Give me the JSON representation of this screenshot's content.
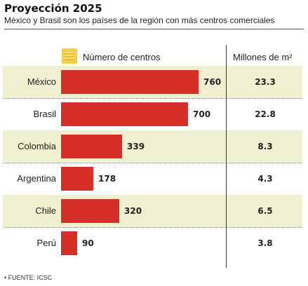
{
  "header": {
    "title": "Proyección 2025",
    "subtitle": "México y Brasil son los países de la región con más centros comerciales"
  },
  "legend": {
    "bar_label": "Número de centros",
    "column2_label": "Millones de m²",
    "swatch_color": "#f2d04a"
  },
  "source": "• FUENTE: ICSC",
  "colors": {
    "bar": "#d52f28",
    "row_shade": "#eef0d0"
  },
  "chart_data": {
    "type": "bar",
    "orientation": "horizontal",
    "title": "Proyección 2025",
    "subtitle": "México y Brasil son los países de la región con más centros comerciales",
    "categories": [
      "México",
      "Brasil",
      "Colombia",
      "Argentina",
      "Chile",
      "Perú"
    ],
    "series": [
      {
        "name": "Número de centros",
        "values": [
          760,
          700,
          339,
          178,
          320,
          90
        ]
      },
      {
        "name": "Millones de m²",
        "values": [
          "23.3",
          "22.8",
          "8.3",
          "4.3",
          "6.5",
          "3.8"
        ]
      }
    ],
    "xlim": [
      0,
      760
    ],
    "grid": false,
    "legend_position": "top"
  }
}
